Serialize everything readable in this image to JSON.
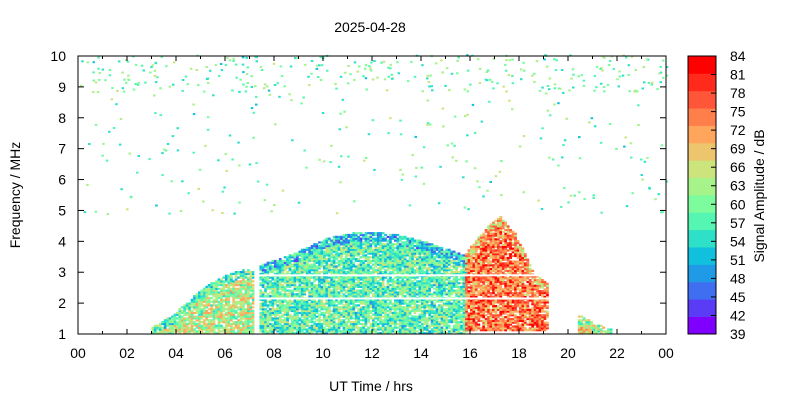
{
  "chart_data": {
    "type": "heatmap",
    "title": "2025-04-28",
    "xlabel": "UT Time / hrs",
    "ylabel": "Frequency / MHz",
    "xlim": [
      0,
      24
    ],
    "ylim": [
      1,
      10
    ],
    "x_ticks": [
      "00",
      "02",
      "04",
      "06",
      "08",
      "10",
      "12",
      "14",
      "16",
      "18",
      "20",
      "22",
      "00"
    ],
    "y_ticks": [
      "1",
      "2",
      "3",
      "4",
      "5",
      "6",
      "7",
      "8",
      "9",
      "10"
    ],
    "colorbar": {
      "label": "Signal Amplitude / dB",
      "ticks": [
        "39",
        "42",
        "45",
        "48",
        "51",
        "54",
        "57",
        "60",
        "63",
        "66",
        "69",
        "72",
        "75",
        "78",
        "81",
        "84"
      ],
      "colors": [
        "#7f00ff",
        "#5a3cf6",
        "#3f6ef0",
        "#1f9ae6",
        "#10c0dc",
        "#2ee0c8",
        "#55f5b2",
        "#7cfc9c",
        "#a6f38a",
        "#cbe57c",
        "#ecc56c",
        "#ffa55c",
        "#ff7f4a",
        "#ff5538",
        "#ff2a1c",
        "#ff0000"
      ]
    },
    "regions": [
      {
        "t0": 3.0,
        "t1": 7.2,
        "f_low": 1.0,
        "f_high": [
          1.2,
          1.6,
          2.2,
          2.7,
          3.0,
          3.1
        ],
        "amp": 64
      },
      {
        "t0": 7.4,
        "t1": 15.8,
        "f_low": 1.0,
        "f_high": [
          3.2,
          3.6,
          4.1,
          4.3,
          4.2,
          3.9,
          3.5
        ],
        "amp": 58
      },
      {
        "t0": 15.8,
        "t1": 19.2,
        "f_low": 1.1,
        "f_high": [
          3.6,
          4.3,
          4.8,
          4.2,
          3.0,
          2.6
        ],
        "amp": 76
      },
      {
        "t0": 20.4,
        "t1": 21.8,
        "f_low": 1.0,
        "f_high": [
          1.6,
          1.3,
          1.1
        ],
        "amp": 68
      }
    ],
    "gaps_mhz": [
      2.15,
      2.9
    ]
  }
}
